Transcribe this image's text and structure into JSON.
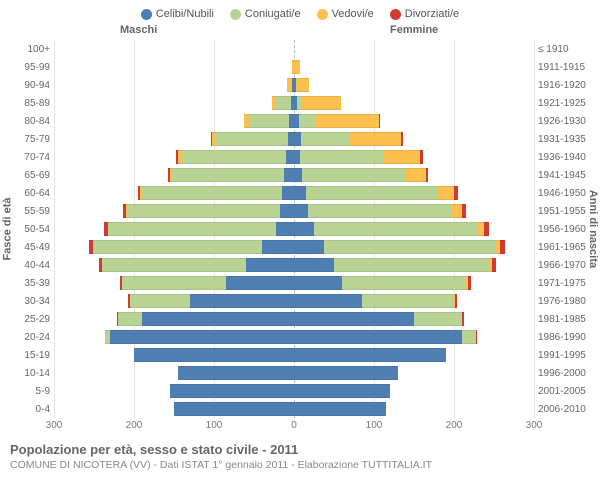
{
  "chart": {
    "type": "population-pyramid",
    "legend": [
      {
        "label": "Celibi/Nubili",
        "color": "#4f7fb2"
      },
      {
        "label": "Coniugati/e",
        "color": "#b9d395"
      },
      {
        "label": "Vedovi/e",
        "color": "#fbc04e"
      },
      {
        "label": "Divorziati/e",
        "color": "#d03b33"
      }
    ],
    "header_male": "Maschi",
    "header_female": "Femmine",
    "ylabel_left": "Fasce di età",
    "ylabel_right": "Anni di nascita",
    "max": 300,
    "xticks": [
      300,
      200,
      100,
      0,
      100,
      200,
      300
    ],
    "background_color": "#ffffff",
    "grid_color": "#e5e5e5",
    "rows": [
      {
        "age": "100+",
        "birth": "≤ 1910",
        "m": [
          0,
          0,
          0,
          0
        ],
        "f": [
          0,
          0,
          0,
          0
        ]
      },
      {
        "age": "95-99",
        "birth": "1911-1915",
        "m": [
          0,
          0,
          3,
          0
        ],
        "f": [
          0,
          0,
          7,
          0
        ]
      },
      {
        "age": "90-94",
        "birth": "1916-1920",
        "m": [
          2,
          1,
          6,
          0
        ],
        "f": [
          2,
          1,
          16,
          0
        ]
      },
      {
        "age": "85-89",
        "birth": "1921-1925",
        "m": [
          4,
          18,
          5,
          0
        ],
        "f": [
          4,
          5,
          50,
          0
        ]
      },
      {
        "age": "80-84",
        "birth": "1926-1930",
        "m": [
          6,
          50,
          6,
          1
        ],
        "f": [
          6,
          20,
          80,
          1
        ]
      },
      {
        "age": "75-79",
        "birth": "1931-1935",
        "m": [
          8,
          90,
          5,
          1
        ],
        "f": [
          9,
          60,
          65,
          2
        ]
      },
      {
        "age": "70-74",
        "birth": "1936-1940",
        "m": [
          10,
          130,
          5,
          2
        ],
        "f": [
          8,
          105,
          45,
          3
        ]
      },
      {
        "age": "65-69",
        "birth": "1941-1945",
        "m": [
          12,
          140,
          3,
          3
        ],
        "f": [
          10,
          130,
          25,
          3
        ]
      },
      {
        "age": "60-64",
        "birth": "1946-1950",
        "m": [
          15,
          175,
          2,
          3
        ],
        "f": [
          15,
          165,
          20,
          5
        ]
      },
      {
        "age": "55-59",
        "birth": "1951-1955",
        "m": [
          18,
          190,
          2,
          4
        ],
        "f": [
          18,
          180,
          12,
          5
        ]
      },
      {
        "age": "50-54",
        "birth": "1956-1960",
        "m": [
          22,
          210,
          1,
          4
        ],
        "f": [
          25,
          205,
          8,
          6
        ]
      },
      {
        "age": "45-49",
        "birth": "1961-1965",
        "m": [
          40,
          210,
          1,
          5
        ],
        "f": [
          38,
          215,
          5,
          6
        ]
      },
      {
        "age": "40-44",
        "birth": "1966-1970",
        "m": [
          60,
          180,
          0,
          4
        ],
        "f": [
          50,
          195,
          3,
          5
        ]
      },
      {
        "age": "35-39",
        "birth": "1971-1975",
        "m": [
          85,
          130,
          0,
          3
        ],
        "f": [
          60,
          155,
          2,
          4
        ]
      },
      {
        "age": "30-34",
        "birth": "1976-1980",
        "m": [
          130,
          75,
          0,
          2
        ],
        "f": [
          85,
          115,
          1,
          3
        ]
      },
      {
        "age": "25-29",
        "birth": "1981-1985",
        "m": [
          190,
          30,
          0,
          1
        ],
        "f": [
          150,
          60,
          0,
          2
        ]
      },
      {
        "age": "20-24",
        "birth": "1986-1990",
        "m": [
          230,
          6,
          0,
          0
        ],
        "f": [
          210,
          18,
          0,
          1
        ]
      },
      {
        "age": "15-19",
        "birth": "1991-1995",
        "m": [
          200,
          0,
          0,
          0
        ],
        "f": [
          190,
          0,
          0,
          0
        ]
      },
      {
        "age": "10-14",
        "birth": "1996-2000",
        "m": [
          145,
          0,
          0,
          0
        ],
        "f": [
          130,
          0,
          0,
          0
        ]
      },
      {
        "age": "5-9",
        "birth": "2001-2005",
        "m": [
          155,
          0,
          0,
          0
        ],
        "f": [
          120,
          0,
          0,
          0
        ]
      },
      {
        "age": "0-4",
        "birth": "2006-2010",
        "m": [
          150,
          0,
          0,
          0
        ],
        "f": [
          115,
          0,
          0,
          0
        ]
      }
    ]
  },
  "footer": {
    "title": "Popolazione per età, sesso e stato civile - 2011",
    "subtitle": "COMUNE DI NICOTERA (VV) - Dati ISTAT 1° gennaio 2011 - Elaborazione TUTTITALIA.IT"
  }
}
